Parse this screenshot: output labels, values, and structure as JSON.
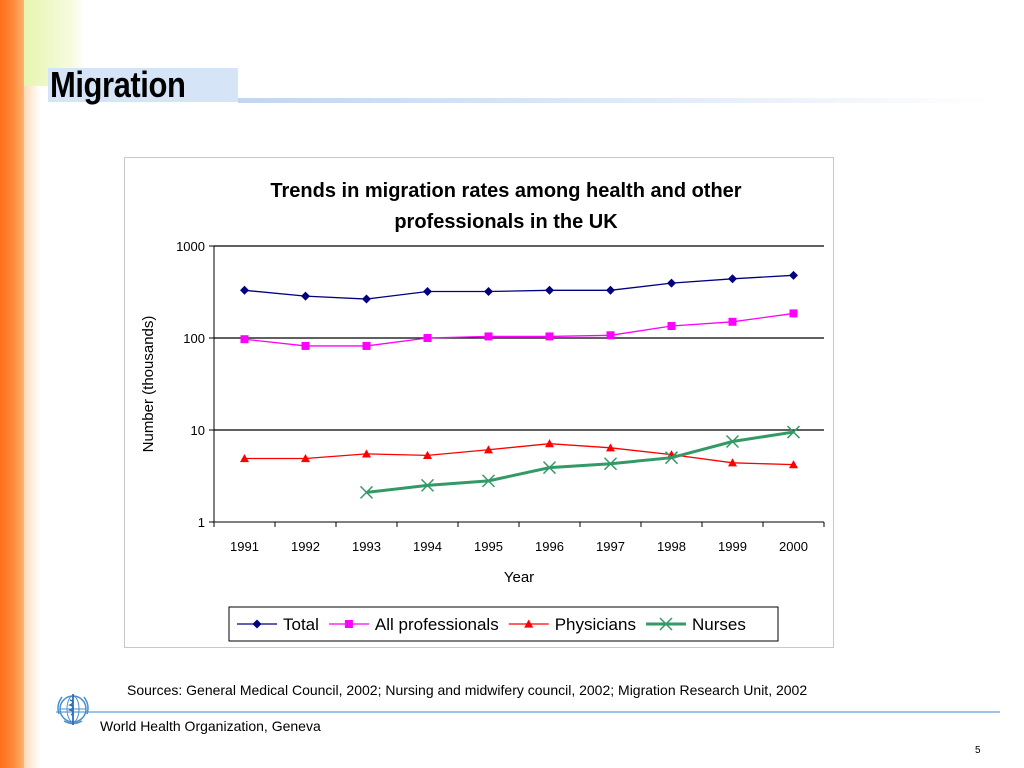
{
  "slide": {
    "title": "Migration",
    "sources": "Sources: General Medical Council, 2002; Nursing and midwifery council, 2002; Migration Research Unit, 2002",
    "organization": "World Health Organization, Geneva",
    "page_number": "5",
    "logo_icon": "who-emblem-icon"
  },
  "chart_data": {
    "type": "line",
    "title_lines": [
      "Trends in migration rates among health and other",
      "professionals in the UK"
    ],
    "xlabel": "Year",
    "ylabel": "Number (thousands)",
    "y_scale": "log",
    "ylim": [
      1,
      1000
    ],
    "y_ticks": [
      "1",
      "10",
      "100",
      "1000"
    ],
    "categories": [
      "1991",
      "1992",
      "1993",
      "1994",
      "1995",
      "1996",
      "1997",
      "1998",
      "1999",
      "2000"
    ],
    "grid": "horizontal major lines",
    "legend_position": "bottom",
    "series": [
      {
        "name": "Total",
        "color": "#000080",
        "marker": "diamond",
        "values": [
          330,
          285,
          265,
          320,
          320,
          330,
          330,
          395,
          440,
          480
        ]
      },
      {
        "name": "All professionals",
        "color": "#ff00ff",
        "marker": "square",
        "values": [
          97,
          82,
          82,
          100,
          104,
          104,
          107,
          135,
          150,
          185
        ]
      },
      {
        "name": "Physicians",
        "color": "#ff0000",
        "marker": "triangle",
        "values": [
          4.9,
          4.9,
          5.5,
          5.3,
          6.1,
          7.1,
          6.4,
          5.4,
          4.4,
          4.2
        ]
      },
      {
        "name": "Nurses",
        "color": "#339966",
        "marker": "x",
        "values": [
          null,
          null,
          2.1,
          2.5,
          2.8,
          3.9,
          4.3,
          5.0,
          7.5,
          9.5
        ]
      }
    ]
  }
}
